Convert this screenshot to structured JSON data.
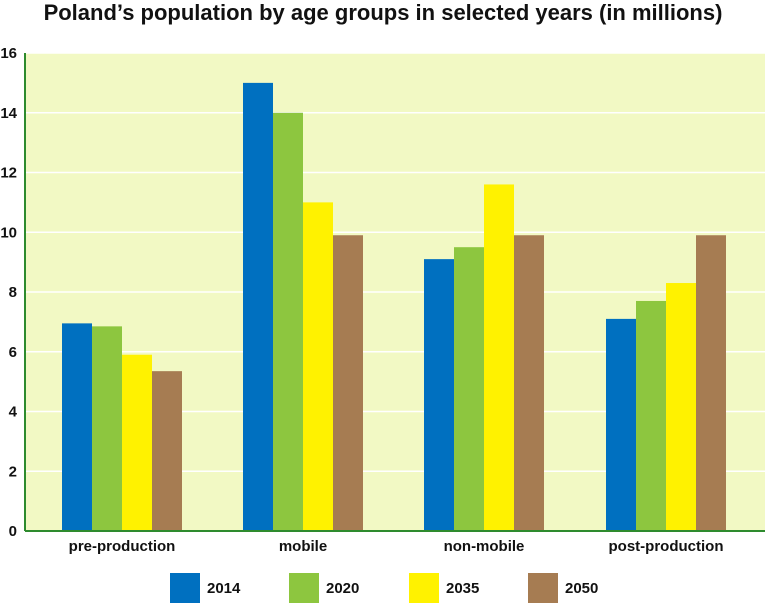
{
  "chart_data": {
    "type": "bar",
    "title": "Poland’s population by age groups in selected years (in millions)",
    "categories": [
      "pre-production",
      "mobile",
      "non-mobile",
      "post-production"
    ],
    "series": [
      {
        "name": "2014",
        "color": "#0070c0",
        "values": [
          6.95,
          15.0,
          9.1,
          7.1
        ]
      },
      {
        "name": "2020",
        "color": "#8dc63f",
        "values": [
          6.85,
          14.0,
          9.5,
          7.7
        ]
      },
      {
        "name": "2035",
        "color": "#fff200",
        "values": [
          5.9,
          11.0,
          11.6,
          8.3
        ]
      },
      {
        "name": "2050",
        "color": "#a67c52",
        "values": [
          5.35,
          9.9,
          9.9,
          9.9
        ]
      }
    ],
    "ylim": [
      0,
      16
    ],
    "yticks": [
      "0",
      "2",
      "4",
      "6",
      "8",
      "10",
      "12",
      "14",
      "16"
    ],
    "grid": true,
    "legend_position": "bottom",
    "plot_background": "#f2f9c4",
    "gridline_color": "#ffffff",
    "axis_color": "#2e8b2e"
  }
}
